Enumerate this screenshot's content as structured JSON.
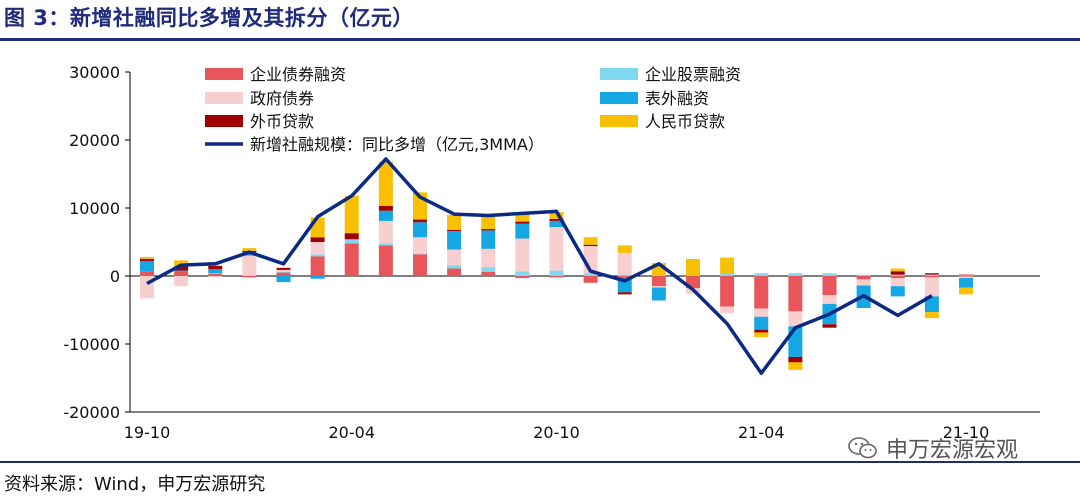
{
  "header": {
    "title": "图 3：新增社融同比多增及其拆分（亿元）"
  },
  "footer": {
    "source": "资料来源：Wind，申万宏源研究",
    "watermark": "申万宏源宏观"
  },
  "chart_data": {
    "type": "bar",
    "stacked": true,
    "ylim": [
      -20000,
      30000
    ],
    "yticks": [
      30000,
      20000,
      10000,
      0,
      -10000,
      -20000
    ],
    "xtick_labels": [
      {
        "index": 0,
        "label": "19-10"
      },
      {
        "index": 6,
        "label": "20-04"
      },
      {
        "index": 12,
        "label": "20-10"
      },
      {
        "index": 18,
        "label": "21-04"
      },
      {
        "index": 24,
        "label": "21-10"
      }
    ],
    "legend": [
      "企业债券融资",
      "企业股票融资",
      "政府债券",
      "表外融资",
      "外币贷款",
      "人民币贷款",
      "新增社融规模：同比多增（亿元,3MMA）"
    ],
    "categories": [
      "19-10",
      "19-11",
      "19-12",
      "20-01",
      "20-02",
      "20-03",
      "20-04",
      "20-05",
      "20-06",
      "20-07",
      "20-08",
      "20-09",
      "20-10",
      "20-11",
      "20-12",
      "21-01",
      "21-02",
      "21-03",
      "21-04",
      "21-05",
      "21-06",
      "21-07",
      "21-08",
      "21-09",
      "21-10"
    ],
    "series": [
      {
        "name": "企业债券融资",
        "color": "#e8555a",
        "values": [
          700,
          600,
          300,
          -200,
          500,
          2900,
          4800,
          4500,
          3200,
          1100,
          600,
          -300,
          -200,
          -1000,
          -200,
          -1500,
          -1800,
          -4500,
          -4800,
          -5200,
          -2800,
          -500,
          -300,
          -200,
          -100
        ]
      },
      {
        "name": "企业股票融资",
        "color": "#7fd8f0",
        "values": [
          0,
          0,
          100,
          100,
          100,
          300,
          600,
          300,
          100,
          500,
          700,
          700,
          800,
          400,
          200,
          100,
          100,
          300,
          400,
          400,
          400,
          200,
          200,
          200,
          100
        ]
      },
      {
        "name": "政府债券",
        "color": "#f7cfcf",
        "values": [
          -3300,
          -1500,
          -200,
          2900,
          300,
          1800,
          0,
          3300,
          2400,
          2300,
          2700,
          4800,
          6400,
          4000,
          3200,
          -200,
          -800,
          -1000,
          -1200,
          -2200,
          -1300,
          -900,
          -1200,
          -2800,
          -200
        ]
      },
      {
        "name": "表外融资",
        "color": "#14a7e3",
        "values": [
          1500,
          200,
          600,
          500,
          -900,
          -400,
          0,
          1500,
          2200,
          2700,
          2700,
          2200,
          900,
          0,
          -2200,
          -1900,
          0,
          0,
          -1900,
          -4500,
          -3000,
          -3300,
          -1500,
          -2300,
          -1400
        ]
      },
      {
        "name": "外币贷款",
        "color": "#a00000",
        "values": [
          300,
          600,
          500,
          200,
          300,
          700,
          900,
          700,
          400,
          200,
          200,
          300,
          300,
          200,
          -300,
          0,
          0,
          0,
          -400,
          -800,
          -500,
          0,
          500,
          200,
          100
        ]
      },
      {
        "name": "人民币贷款",
        "color": "#f8c000",
        "values": [
          300,
          900,
          0,
          400,
          0,
          2900,
          5500,
          6500,
          4000,
          2200,
          1800,
          1200,
          1000,
          1100,
          1100,
          1800,
          2400,
          2400,
          -700,
          -1100,
          0,
          0,
          400,
          -900,
          -1000
        ]
      },
      {
        "name": "新增社融规模：同比多增（亿元,3MMA）",
        "type": "line",
        "color": "#0b2a84",
        "values": [
          -1100,
          1600,
          1800,
          3500,
          1800,
          8700,
          11800,
          17200,
          11600,
          9100,
          8900,
          9200,
          9500,
          700,
          -700,
          1800,
          -2000,
          -7000,
          -14300,
          -7600,
          -5600,
          -2900,
          -5800,
          -2900,
          null
        ]
      }
    ]
  }
}
